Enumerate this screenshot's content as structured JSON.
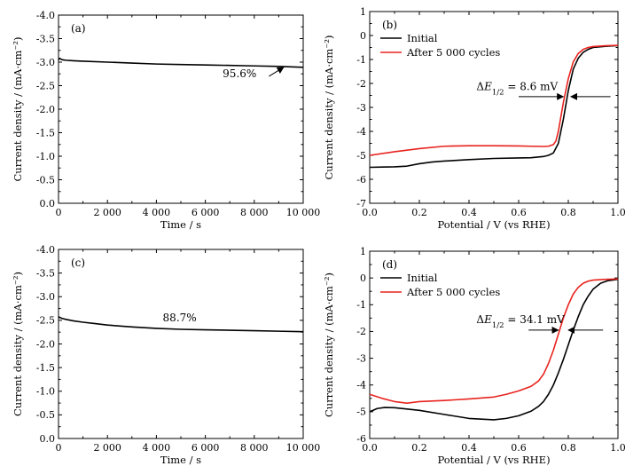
{
  "chart_data": [
    {
      "id": "a",
      "type": "line",
      "panel_label": "(a)",
      "xlabel": "Time / s",
      "ylabel": "Current density / (mA·cm⁻²)",
      "xlim": [
        0,
        10000
      ],
      "ylim": [
        0,
        -4.0
      ],
      "y_inverted": true,
      "x_ticks": [
        0,
        2000,
        4000,
        6000,
        8000,
        10000
      ],
      "x_tick_labels": [
        "0",
        "2 000",
        "4 000",
        "6 000",
        "8 000",
        "10 000"
      ],
      "y_ticks": [
        0,
        -0.5,
        -1.0,
        -1.5,
        -2.0,
        -2.5,
        -3.0,
        -3.5,
        -4.0
      ],
      "y_tick_labels": [
        "0.0",
        "-0.5",
        "-1.0",
        "-1.5",
        "-2.0",
        "-2.5",
        "-3.0",
        "-3.5",
        "-4.0"
      ],
      "legend": null,
      "series": [
        {
          "color": "#000000",
          "x": [
            0,
            50,
            150,
            300,
            600,
            1000,
            2000,
            3000,
            4000,
            5000,
            6000,
            7000,
            8000,
            9000,
            9500,
            10000
          ],
          "y": [
            -3.05,
            -3.08,
            -3.05,
            -3.04,
            -3.03,
            -3.02,
            -3.0,
            -2.98,
            -2.96,
            -2.95,
            -2.94,
            -2.93,
            -2.92,
            -2.91,
            -2.9,
            -2.89
          ]
        }
      ],
      "annotations": [
        {
          "text": "95.6%",
          "x": 7400,
          "y": -2.68,
          "arrow_from": [
            8600,
            -2.7
          ],
          "arrow_to": [
            9200,
            -2.89
          ]
        }
      ]
    },
    {
      "id": "b",
      "type": "line",
      "panel_label": "(b)",
      "xlabel": "Potential / V (vs RHE)",
      "ylabel": "Current density / (mA·cm⁻²)",
      "xlim": [
        0.0,
        1.0
      ],
      "ylim": [
        -7,
        1
      ],
      "x_ticks": [
        0.0,
        0.2,
        0.4,
        0.6,
        0.8,
        1.0
      ],
      "x_tick_labels": [
        "0.0",
        "0.2",
        "0.4",
        "0.6",
        "0.8",
        "1.0"
      ],
      "y_ticks": [
        -7,
        -6,
        -5,
        -4,
        -3,
        -2,
        -1,
        0,
        1
      ],
      "y_tick_labels": [
        "-7",
        "-6",
        "-5",
        "-4",
        "-3",
        "-2",
        "-1",
        "0",
        "1"
      ],
      "legend": {
        "position": "top-left",
        "entries": [
          "Initial",
          "After 5 000 cycles"
        ]
      },
      "series": [
        {
          "name": "Initial",
          "color": "#000000",
          "x": [
            0.0,
            0.05,
            0.1,
            0.15,
            0.2,
            0.25,
            0.3,
            0.4,
            0.5,
            0.6,
            0.65,
            0.7,
            0.72,
            0.74,
            0.76,
            0.78,
            0.8,
            0.82,
            0.84,
            0.86,
            0.88,
            0.9,
            0.95,
            1.0
          ],
          "y": [
            -5.5,
            -5.49,
            -5.48,
            -5.45,
            -5.35,
            -5.28,
            -5.24,
            -5.18,
            -5.13,
            -5.11,
            -5.1,
            -5.05,
            -5.0,
            -4.9,
            -4.5,
            -3.5,
            -2.3,
            -1.4,
            -0.95,
            -0.7,
            -0.58,
            -0.5,
            -0.45,
            -0.42
          ]
        },
        {
          "name": "After 5 000 cycles",
          "color": "#e8231e",
          "x": [
            0.0,
            0.1,
            0.2,
            0.3,
            0.4,
            0.5,
            0.6,
            0.65,
            0.7,
            0.72,
            0.74,
            0.75,
            0.76,
            0.78,
            0.8,
            0.82,
            0.84,
            0.86,
            0.88,
            0.9,
            0.95,
            1.0
          ],
          "y": [
            -5.0,
            -4.85,
            -4.72,
            -4.62,
            -4.6,
            -4.6,
            -4.61,
            -4.62,
            -4.63,
            -4.62,
            -4.55,
            -4.4,
            -4.0,
            -2.8,
            -1.8,
            -1.1,
            -0.75,
            -0.58,
            -0.5,
            -0.46,
            -0.43,
            -0.41
          ]
        }
      ],
      "annotations": [
        {
          "text": "ΔE₁/₂ = 8.6 mV",
          "x": 0.43,
          "y": -2.28,
          "arrow_left": {
            "from": [
              0.6,
              -2.55
            ],
            "to": [
              0.78,
              -2.55
            ]
          },
          "arrow_right": {
            "from": [
              0.97,
              -2.55
            ],
            "to": [
              0.81,
              -2.55
            ]
          }
        }
      ]
    },
    {
      "id": "c",
      "type": "line",
      "panel_label": "(c)",
      "xlabel": "Time / s",
      "ylabel": "Current density / (mA·cm⁻²)",
      "xlim": [
        0,
        10000
      ],
      "ylim": [
        0,
        -4.0
      ],
      "y_inverted": true,
      "x_ticks": [
        0,
        2000,
        4000,
        6000,
        8000,
        10000
      ],
      "x_tick_labels": [
        "0",
        "2 000",
        "4 000",
        "6 000",
        "8 000",
        "10 000"
      ],
      "y_ticks": [
        0,
        -0.5,
        -1.0,
        -1.5,
        -2.0,
        -2.5,
        -3.0,
        -3.5,
        -4.0
      ],
      "y_tick_labels": [
        "0.0",
        "-0.5",
        "-1.0",
        "-1.5",
        "-2.0",
        "-2.5",
        "-3.0",
        "-3.5",
        "-4.0"
      ],
      "legend": null,
      "series": [
        {
          "color": "#000000",
          "x": [
            0,
            50,
            150,
            300,
            600,
            1000,
            1500,
            2000,
            3000,
            4000,
            5000,
            6000,
            7000,
            8000,
            9000,
            10000
          ],
          "y": [
            -2.58,
            -2.56,
            -2.54,
            -2.52,
            -2.49,
            -2.46,
            -2.43,
            -2.4,
            -2.36,
            -2.33,
            -2.31,
            -2.3,
            -2.29,
            -2.28,
            -2.27,
            -2.26
          ]
        }
      ],
      "annotations": [
        {
          "text": "88.7%",
          "x": 4950,
          "y": -2.48
        }
      ]
    },
    {
      "id": "d",
      "type": "line",
      "panel_label": "(d)",
      "xlabel": "Potential / V (vs RHE)",
      "ylabel": "Current density / (mA·cm⁻²)",
      "xlim": [
        0.0,
        1.0
      ],
      "ylim": [
        -6,
        1
      ],
      "x_ticks": [
        0.0,
        0.2,
        0.4,
        0.6,
        0.8,
        1.0
      ],
      "x_tick_labels": [
        "0.0",
        "0.2",
        "0.4",
        "0.6",
        "0.8",
        "1.0"
      ],
      "y_ticks": [
        -6,
        -5,
        -4,
        -3,
        -2,
        -1,
        0,
        1
      ],
      "y_tick_labels": [
        "-6",
        "-5",
        "-4",
        "-3",
        "-2",
        "-1",
        "0",
        "1"
      ],
      "legend": {
        "position": "top-left",
        "entries": [
          "Initial",
          "After 5 000 cycles"
        ]
      },
      "series": [
        {
          "name": "Initial",
          "color": "#000000",
          "x": [
            0.0,
            0.03,
            0.06,
            0.1,
            0.15,
            0.2,
            0.3,
            0.4,
            0.5,
            0.55,
            0.6,
            0.65,
            0.68,
            0.7,
            0.72,
            0.74,
            0.76,
            0.78,
            0.8,
            0.82,
            0.84,
            0.86,
            0.88,
            0.9,
            0.93,
            0.96,
            1.0
          ],
          "y": [
            -5.0,
            -4.88,
            -4.84,
            -4.85,
            -4.9,
            -4.95,
            -5.1,
            -5.25,
            -5.3,
            -5.25,
            -5.15,
            -4.98,
            -4.8,
            -4.62,
            -4.35,
            -4.0,
            -3.55,
            -3.05,
            -2.5,
            -1.95,
            -1.45,
            -1.0,
            -0.68,
            -0.42,
            -0.2,
            -0.1,
            -0.05
          ]
        },
        {
          "name": "After 5 000 cycles",
          "color": "#e8231e",
          "x": [
            0.0,
            0.05,
            0.1,
            0.15,
            0.2,
            0.3,
            0.4,
            0.5,
            0.55,
            0.6,
            0.65,
            0.68,
            0.7,
            0.72,
            0.74,
            0.76,
            0.78,
            0.8,
            0.82,
            0.84,
            0.86,
            0.88,
            0.9,
            0.95,
            1.0
          ],
          "y": [
            -4.35,
            -4.5,
            -4.62,
            -4.68,
            -4.62,
            -4.58,
            -4.52,
            -4.45,
            -4.35,
            -4.22,
            -4.05,
            -3.85,
            -3.6,
            -3.2,
            -2.7,
            -2.1,
            -1.5,
            -1.0,
            -0.6,
            -0.35,
            -0.2,
            -0.12,
            -0.08,
            -0.05,
            -0.04
          ]
        }
      ],
      "annotations": [
        {
          "text": "ΔE₁/₂ = 34.1 mV",
          "x": 0.43,
          "y": -1.68,
          "arrow_left": {
            "from": [
              0.64,
              -1.95
            ],
            "to": [
              0.76,
              -1.95
            ]
          },
          "arrow_right": {
            "from": [
              0.94,
              -1.95
            ],
            "to": [
              0.8,
              -1.95
            ]
          }
        }
      ]
    }
  ]
}
